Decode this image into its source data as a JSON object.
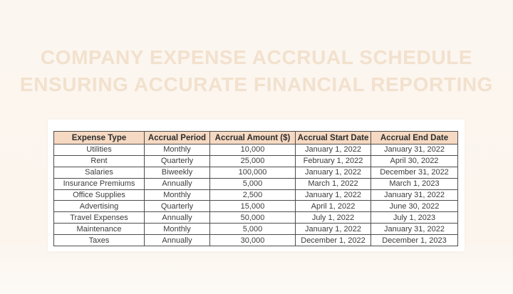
{
  "page": {
    "background_color": "#fbf5ee",
    "panel_background_color": "#ffffff"
  },
  "title": {
    "line1": "COMPANY EXPENSE ACCRUAL SCHEDULE",
    "line2": "ENSURING ACCURATE FINANCIAL REPORTING",
    "color": "#f2e1cd"
  },
  "table": {
    "header_background_color": "#f6d9c2",
    "border_color": "#4d4d4d",
    "columns": [
      "Expense Type",
      "Accrual Period",
      "Accrual Amount ($)",
      "Accrual Start Date",
      "Accrual End Date"
    ],
    "rows": [
      [
        "Utilities",
        "Monthly",
        "10,000",
        "January 1, 2022",
        "January 31, 2022"
      ],
      [
        "Rent",
        "Quarterly",
        "25,000",
        "February 1, 2022",
        "April 30, 2022"
      ],
      [
        "Salaries",
        "Biweekly",
        "100,000",
        "January 1, 2022",
        "December 31, 2022"
      ],
      [
        "Insurance Premiums",
        "Annually",
        "5,000",
        "March 1, 2022",
        "March 1, 2023"
      ],
      [
        "Office Supplies",
        "Monthly",
        "2,500",
        "January 1, 2022",
        "January 31, 2022"
      ],
      [
        "Advertising",
        "Quarterly",
        "15,000",
        "April 1, 2022",
        "June 30, 2022"
      ],
      [
        "Travel Expenses",
        "Annually",
        "50,000",
        "July 1, 2022",
        "July 1, 2023"
      ],
      [
        "Maintenance",
        "Monthly",
        "5,000",
        "January 1, 2022",
        "January 31, 2022"
      ],
      [
        "Taxes",
        "Annually",
        "30,000",
        "December 1, 2022",
        "December 1, 2023"
      ]
    ]
  }
}
